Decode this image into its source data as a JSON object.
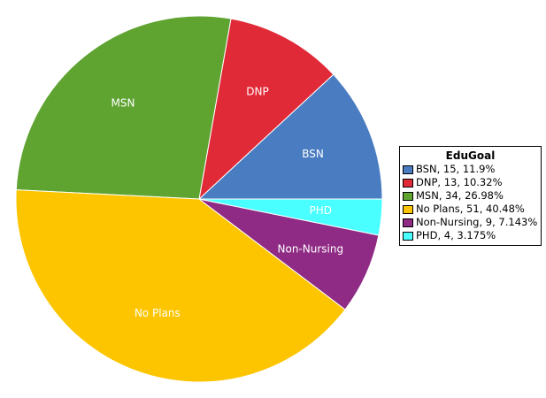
{
  "chart_data": {
    "type": "pie",
    "title": "",
    "legend": {
      "title": "EduGoal",
      "placement": "right"
    },
    "slices": [
      {
        "name": "BSN",
        "value": 15,
        "percent_label": "11.9%",
        "color": "#4a7cc2",
        "entry": "BSN, 15, 11.9%",
        "label_color": "#ffffff"
      },
      {
        "name": "DNP",
        "value": 13,
        "percent_label": "10.32%",
        "color": "#e12a37",
        "entry": "DNP, 13, 10.32%",
        "label_color": "#ffffff"
      },
      {
        "name": "MSN",
        "value": 34,
        "percent_label": "26.98%",
        "color": "#5fa331",
        "entry": "MSN, 34, 26.98%",
        "label_color": "#ffffff"
      },
      {
        "name": "No Plans",
        "value": 51,
        "percent_label": "40.48%",
        "color": "#fcc500",
        "entry": "No Plans, 51, 40.48%",
        "label_color": "#ffffff"
      },
      {
        "name": "Non-Nursing",
        "value": 9,
        "percent_label": "7.143%",
        "color": "#8f2b85",
        "entry": "Non-Nursing, 9, 7.143%",
        "label_color": "#ffffff"
      },
      {
        "name": "PHD",
        "value": 4,
        "percent_label": "3.175%",
        "color": "#4affff",
        "entry": "PHD, 4, 3.175%",
        "label_color": "#ffffff"
      }
    ]
  }
}
